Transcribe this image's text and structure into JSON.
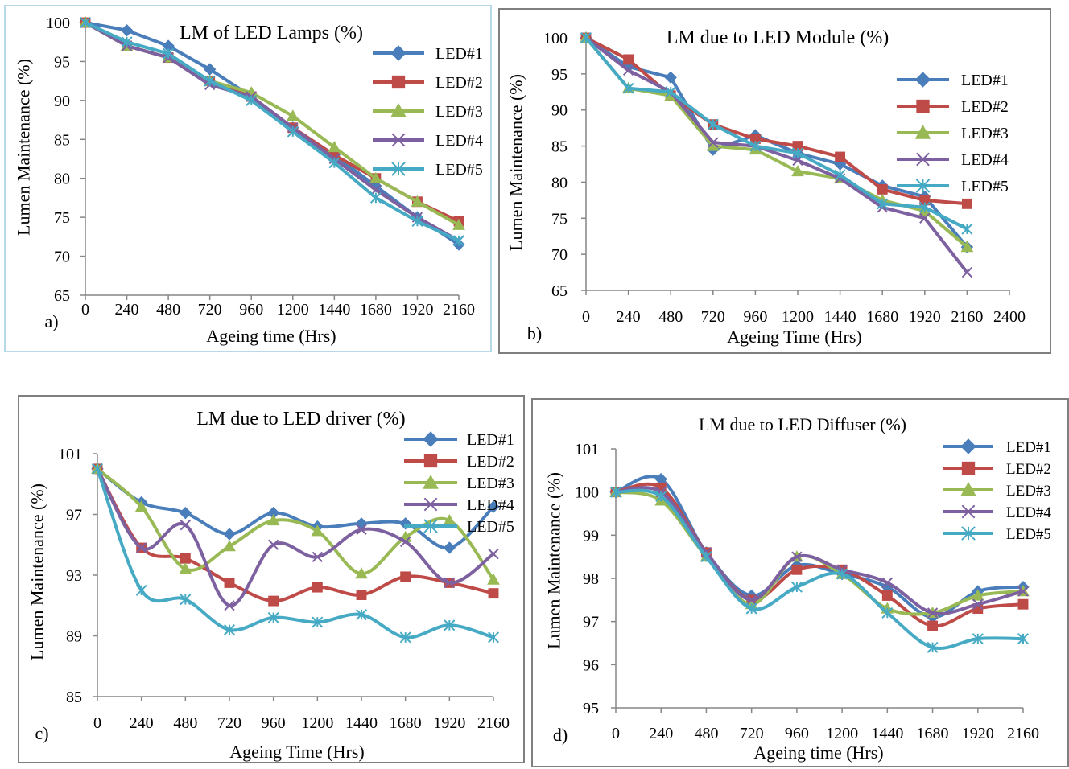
{
  "chart_data": [
    {
      "type": "line",
      "panel_label": "a)",
      "title": "LM of LED Lamps (%)",
      "xlabel": "Ageing time (Hrs)",
      "ylabel": "Lumen Maintenance (%)",
      "x": [
        0,
        240,
        480,
        720,
        960,
        1200,
        1440,
        1680,
        1920,
        2160
      ],
      "xlim": [
        0,
        2160
      ],
      "ylim": [
        65,
        100
      ],
      "yticks": [
        65,
        70,
        75,
        80,
        85,
        90,
        95,
        100
      ],
      "grid": false,
      "legend_position": "right",
      "series": [
        {
          "name": "LED#1",
          "values": [
            100,
            99,
            97,
            94,
            90.5,
            86.5,
            83,
            79,
            75,
            71.5
          ]
        },
        {
          "name": "LED#2",
          "values": [
            100,
            97,
            95.5,
            92.5,
            90.5,
            86.5,
            83,
            80,
            77,
            74.5
          ]
        },
        {
          "name": "LED#3",
          "values": [
            100,
            97,
            95.5,
            92.5,
            91,
            88,
            84,
            80,
            77,
            74
          ]
        },
        {
          "name": "LED#4",
          "values": [
            100,
            97,
            95.5,
            92,
            90.5,
            86.5,
            82.5,
            78.5,
            75,
            72
          ]
        },
        {
          "name": "LED#5",
          "values": [
            100,
            97.5,
            96,
            92.5,
            90,
            86,
            82,
            77.5,
            74.5,
            72
          ]
        }
      ]
    },
    {
      "type": "line",
      "panel_label": "b)",
      "title": "LM due to LED Module (%)",
      "xlabel": "Ageing Time (Hrs)",
      "ylabel": "Lumen  Maintenance (%)",
      "x": [
        0,
        240,
        480,
        720,
        960,
        1200,
        1440,
        1680,
        1920,
        2160
      ],
      "xlim": [
        0,
        2400
      ],
      "xticks": [
        0,
        240,
        480,
        720,
        960,
        1200,
        1440,
        1680,
        1920,
        2160,
        2400
      ],
      "ylim": [
        65,
        100
      ],
      "yticks": [
        65,
        70,
        75,
        80,
        85,
        90,
        95,
        100
      ],
      "grid": false,
      "legend_position": "right",
      "series": [
        {
          "name": "LED#1",
          "values": [
            100,
            96,
            94.5,
            84.5,
            86.5,
            84,
            82.5,
            79.5,
            78,
            71
          ]
        },
        {
          "name": "LED#2",
          "values": [
            100,
            97,
            92,
            88,
            86,
            85,
            83.5,
            79,
            77.5,
            77
          ]
        },
        {
          "name": "LED#3",
          "values": [
            100,
            93,
            92,
            85,
            84.5,
            81.5,
            80.5,
            77.5,
            76,
            71
          ]
        },
        {
          "name": "LED#4",
          "values": [
            100,
            95.5,
            92.5,
            85.5,
            85,
            83,
            80.5,
            76.5,
            75,
            67.5
          ]
        },
        {
          "name": "LED#5",
          "values": [
            100,
            93,
            92.5,
            88,
            85,
            84,
            81,
            77,
            76.5,
            73.5
          ]
        }
      ]
    },
    {
      "type": "line",
      "panel_label": "c)",
      "title": "LM due to LED driver (%)",
      "xlabel": "Ageing Time (Hrs)",
      "ylabel": "Lumen Maintenance (%)",
      "x": [
        0,
        240,
        480,
        720,
        960,
        1200,
        1440,
        1680,
        1920,
        2160
      ],
      "xlim": [
        0,
        2160
      ],
      "ylim": [
        85,
        101
      ],
      "yticks": [
        85,
        89,
        93,
        97,
        101
      ],
      "grid": false,
      "legend_position": "right",
      "series": [
        {
          "name": "LED#1",
          "values": [
            100,
            97.8,
            97.1,
            95.7,
            97.1,
            96.2,
            96.4,
            96.4,
            94.8,
            97.5
          ]
        },
        {
          "name": "LED#2",
          "values": [
            100,
            94.8,
            94.1,
            92.5,
            91.3,
            92.2,
            91.7,
            92.9,
            92.5,
            91.8
          ]
        },
        {
          "name": "LED#3",
          "values": [
            100,
            97.5,
            93.4,
            94.9,
            96.6,
            95.9,
            93.1,
            95.5,
            96.6,
            92.7
          ]
        },
        {
          "name": "LED#4",
          "values": [
            100,
            94.8,
            96.3,
            91,
            95,
            94.2,
            96,
            95.2,
            92.5,
            94.4
          ]
        },
        {
          "name": "LED#5",
          "values": [
            100,
            92,
            91.4,
            89.4,
            90.2,
            89.9,
            90.4,
            88.9,
            89.7,
            88.9
          ]
        }
      ]
    },
    {
      "type": "line",
      "panel_label": "d)",
      "title": "LM due to LED Diffuser (%)",
      "xlabel": "Ageing time (Hrs)",
      "ylabel": "Lumen  Maintenance (%)",
      "x": [
        0,
        240,
        480,
        720,
        960,
        1200,
        1440,
        1680,
        1920,
        2160
      ],
      "xlim": [
        0,
        2160
      ],
      "ylim": [
        95,
        101
      ],
      "yticks": [
        95,
        96,
        97,
        98,
        99,
        100,
        101
      ],
      "grid": false,
      "legend_position": "top-right",
      "series": [
        {
          "name": "LED#1",
          "values": [
            100,
            100.3,
            98.6,
            97.6,
            98.3,
            98.1,
            97.8,
            97.1,
            97.7,
            97.8
          ]
        },
        {
          "name": "LED#2",
          "values": [
            100,
            100.1,
            98.6,
            97.5,
            98.2,
            98.2,
            97.6,
            96.9,
            97.3,
            97.4
          ]
        },
        {
          "name": "LED#3",
          "values": [
            100,
            99.8,
            98.5,
            97.4,
            98.5,
            98.1,
            97.3,
            97.2,
            97.6,
            97.7
          ]
        },
        {
          "name": "LED#4",
          "values": [
            100,
            100,
            98.6,
            97.5,
            98.5,
            98.2,
            97.9,
            97.2,
            97.4,
            97.7
          ]
        },
        {
          "name": "LED#5",
          "values": [
            100,
            99.9,
            98.5,
            97.3,
            97.8,
            98.1,
            97.2,
            96.4,
            96.6,
            96.6
          ]
        }
      ]
    }
  ],
  "series_colors": [
    "#4a7ebb",
    "#be4b48",
    "#98b954",
    "#7d60a0",
    "#46aac5"
  ],
  "series_markers": [
    "diamond",
    "square",
    "triangle",
    "x-cross",
    "asterisk"
  ]
}
